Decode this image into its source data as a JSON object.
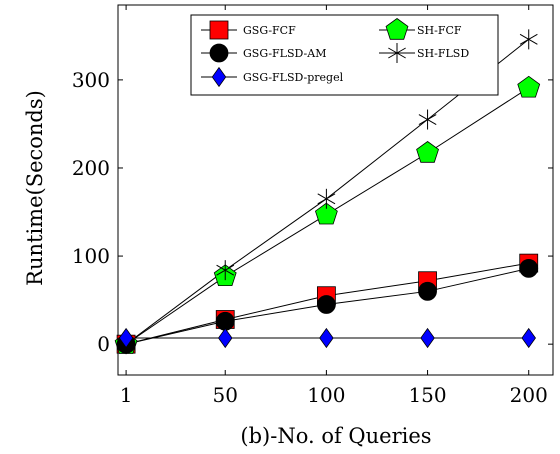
{
  "chart_data": {
    "type": "line",
    "xlabel": "(b)-No. of Queries",
    "ylabel": "Runtime(Seconds)",
    "x": [
      1,
      50,
      100,
      150,
      200
    ],
    "xticks": [
      "1",
      "50",
      "100",
      "150",
      "200"
    ],
    "yticks": [
      "0",
      "100",
      "200",
      "300"
    ],
    "xlim": [
      -3,
      212
    ],
    "ylim": [
      -35,
      385
    ],
    "grid": false,
    "legend_position": "top-center",
    "series": [
      {
        "name": "GSG-FCF",
        "values": [
          0,
          28,
          55,
          72,
          92
        ],
        "color": "#ff0000",
        "marker": "square"
      },
      {
        "name": "SH-FCF",
        "values": [
          0,
          77,
          147,
          217,
          291
        ],
        "color": "#00ff00",
        "marker": "pentagon"
      },
      {
        "name": "GSG-FLSD-AM",
        "values": [
          0,
          26,
          45,
          60,
          86
        ],
        "color": "#000000",
        "marker": "circle"
      },
      {
        "name": "SH-FLSD",
        "values": [
          0,
          84,
          165,
          255,
          346
        ],
        "color": "#000000",
        "marker": "star"
      },
      {
        "name": "GSG-FLSD-pregel",
        "values": [
          7,
          7,
          7,
          7,
          7
        ],
        "color": "#0000ff",
        "marker": "diamond"
      }
    ]
  }
}
